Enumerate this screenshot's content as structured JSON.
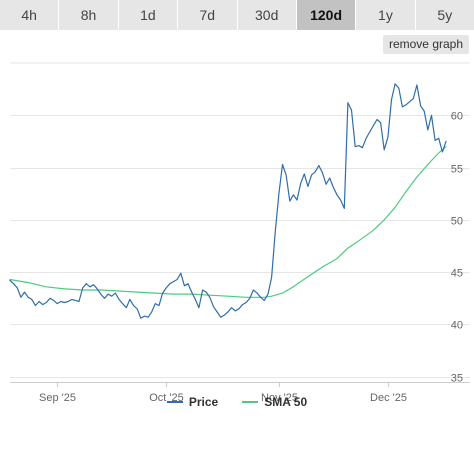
{
  "tabs": [
    {
      "label": "4h",
      "active": false
    },
    {
      "label": "8h",
      "active": false
    },
    {
      "label": "1d",
      "active": false
    },
    {
      "label": "7d",
      "active": false
    },
    {
      "label": "30d",
      "active": false
    },
    {
      "label": "120d",
      "active": true
    },
    {
      "label": "1y",
      "active": false
    },
    {
      "label": "5y",
      "active": false
    }
  ],
  "remove_graph_label": "remove graph",
  "colors": {
    "price": "#2f6ea8",
    "sma": "#4ccb7f",
    "grid": "#e6e6e6",
    "axis": "#cccccc"
  },
  "chart_data": {
    "type": "line",
    "x_ticks": [
      {
        "label": "Sep '25",
        "day": 13
      },
      {
        "label": "Oct '25",
        "day": 43
      },
      {
        "label": "Nov '25",
        "day": 74
      },
      {
        "label": "Dec '25",
        "day": 104
      }
    ],
    "y_ticks": [
      35,
      40,
      45,
      50,
      55,
      60
    ],
    "ylim": [
      34.5,
      65
    ],
    "xlim": [
      0,
      120
    ],
    "grid": true,
    "legend_position": "bottom-center",
    "series": [
      {
        "name": "Price",
        "color": "#2f6ea8",
        "values": [
          [
            0,
            44.2
          ],
          [
            1,
            43.9
          ],
          [
            2,
            43.5
          ],
          [
            3,
            42.6
          ],
          [
            4,
            43.1
          ],
          [
            5,
            42.6
          ],
          [
            6,
            42.4
          ],
          [
            7,
            41.8
          ],
          [
            8,
            42.2
          ],
          [
            9,
            41.9
          ],
          [
            10,
            42.1
          ],
          [
            11,
            42.5
          ],
          [
            12,
            42.3
          ],
          [
            13,
            42.0
          ],
          [
            14,
            42.2
          ],
          [
            15,
            42.1
          ],
          [
            16,
            42.2
          ],
          [
            17,
            42.4
          ],
          [
            18,
            42.3
          ],
          [
            19,
            42.2
          ],
          [
            20,
            43.5
          ],
          [
            21,
            43.9
          ],
          [
            22,
            43.6
          ],
          [
            23,
            43.8
          ],
          [
            24,
            43.4
          ],
          [
            25,
            42.9
          ],
          [
            26,
            42.5
          ],
          [
            27,
            42.9
          ],
          [
            28,
            42.7
          ],
          [
            29,
            43.0
          ],
          [
            30,
            42.4
          ],
          [
            31,
            42.0
          ],
          [
            32,
            41.6
          ],
          [
            33,
            42.4
          ],
          [
            34,
            41.8
          ],
          [
            35,
            41.5
          ],
          [
            36,
            40.6
          ],
          [
            37,
            40.8
          ],
          [
            38,
            40.7
          ],
          [
            39,
            41.2
          ],
          [
            40,
            42.0
          ],
          [
            41,
            41.8
          ],
          [
            42,
            43.0
          ],
          [
            43,
            43.5
          ],
          [
            44,
            43.9
          ],
          [
            45,
            44.1
          ],
          [
            46,
            44.3
          ],
          [
            47,
            44.9
          ],
          [
            48,
            43.7
          ],
          [
            49,
            43.9
          ],
          [
            50,
            43.1
          ],
          [
            51,
            42.4
          ],
          [
            52,
            41.6
          ],
          [
            53,
            43.3
          ],
          [
            54,
            43.1
          ],
          [
            55,
            42.6
          ],
          [
            56,
            41.7
          ],
          [
            57,
            41.2
          ],
          [
            58,
            40.7
          ],
          [
            59,
            40.9
          ],
          [
            60,
            41.2
          ],
          [
            61,
            41.6
          ],
          [
            62,
            41.3
          ],
          [
            63,
            41.5
          ],
          [
            64,
            41.9
          ],
          [
            65,
            42.1
          ],
          [
            66,
            42.5
          ],
          [
            67,
            43.3
          ],
          [
            68,
            43.0
          ],
          [
            69,
            42.6
          ],
          [
            70,
            42.3
          ],
          [
            71,
            42.9
          ],
          [
            72,
            44.5
          ],
          [
            73,
            48.8
          ],
          [
            74,
            52.5
          ],
          [
            75,
            55.3
          ],
          [
            76,
            54.3
          ],
          [
            77,
            51.8
          ],
          [
            78,
            52.4
          ],
          [
            79,
            51.9
          ],
          [
            80,
            53.5
          ],
          [
            81,
            54.4
          ],
          [
            82,
            53.2
          ],
          [
            83,
            54.3
          ],
          [
            84,
            54.6
          ],
          [
            85,
            55.2
          ],
          [
            86,
            54.5
          ],
          [
            87,
            53.4
          ],
          [
            88,
            54.0
          ],
          [
            89,
            53.1
          ],
          [
            90,
            52.4
          ],
          [
            91,
            51.9
          ],
          [
            92,
            51.1
          ],
          [
            93,
            61.2
          ],
          [
            94,
            60.5
          ],
          [
            95,
            57.0
          ],
          [
            96,
            57.1
          ],
          [
            97,
            56.9
          ],
          [
            98,
            57.8
          ],
          [
            99,
            58.4
          ],
          [
            100,
            59.0
          ],
          [
            101,
            59.6
          ],
          [
            102,
            59.3
          ],
          [
            103,
            56.7
          ],
          [
            104,
            57.9
          ],
          [
            105,
            61.5
          ],
          [
            106,
            63.0
          ],
          [
            107,
            62.6
          ],
          [
            108,
            60.8
          ],
          [
            109,
            61.0
          ],
          [
            110,
            61.3
          ],
          [
            111,
            61.6
          ],
          [
            112,
            62.9
          ],
          [
            113,
            60.9
          ],
          [
            114,
            60.4
          ],
          [
            115,
            58.6
          ],
          [
            116,
            60.0
          ],
          [
            117,
            57.6
          ],
          [
            118,
            57.8
          ],
          [
            119,
            56.5
          ],
          [
            120,
            57.5
          ]
        ]
      },
      {
        "name": "SMA 50",
        "color": "#4ccb7f",
        "values": [
          [
            0,
            44.3
          ],
          [
            5,
            44.0
          ],
          [
            10,
            43.6
          ],
          [
            15,
            43.4
          ],
          [
            20,
            43.3
          ],
          [
            25,
            43.3
          ],
          [
            30,
            43.2
          ],
          [
            35,
            43.1
          ],
          [
            40,
            43.0
          ],
          [
            45,
            42.9
          ],
          [
            50,
            42.9
          ],
          [
            55,
            42.8
          ],
          [
            60,
            42.7
          ],
          [
            65,
            42.6
          ],
          [
            70,
            42.6
          ],
          [
            72,
            42.7
          ],
          [
            75,
            43.0
          ],
          [
            78,
            43.6
          ],
          [
            80,
            44.1
          ],
          [
            83,
            44.8
          ],
          [
            86,
            45.5
          ],
          [
            90,
            46.3
          ],
          [
            93,
            47.3
          ],
          [
            96,
            48.0
          ],
          [
            100,
            49.0
          ],
          [
            103,
            50.0
          ],
          [
            106,
            51.2
          ],
          [
            109,
            52.7
          ],
          [
            112,
            54.1
          ],
          [
            115,
            55.3
          ],
          [
            118,
            56.4
          ],
          [
            120,
            57.0
          ]
        ]
      }
    ]
  }
}
